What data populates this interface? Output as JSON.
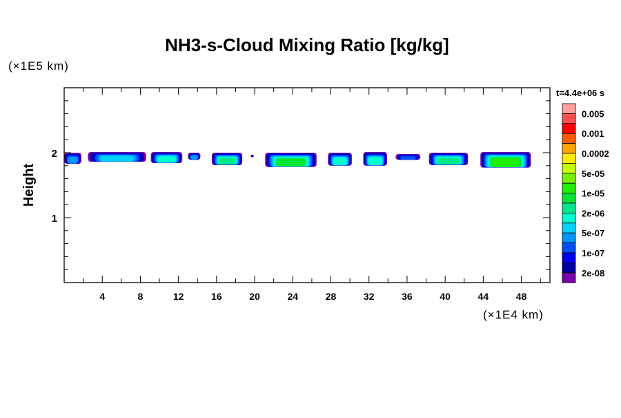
{
  "chart_data": {
    "type": "heatmap",
    "title": "NH3-s-Cloud Mixing Ratio [kg/kg]",
    "ylabel": "Height",
    "yunit": "(×1E5 km)",
    "xunit": "(×1E4 km)",
    "time_label": "t=4.4e+06 s",
    "xlim": [
      0,
      51
    ],
    "ylim": [
      0,
      3
    ],
    "xticks": [
      4,
      8,
      12,
      16,
      20,
      24,
      28,
      32,
      36,
      40,
      44,
      48
    ],
    "yticks": [
      1,
      2
    ],
    "colorbar": {
      "colors": [
        "#ff9f9f",
        "#ff4f4f",
        "#ff0000",
        "#ff5a00",
        "#ffa500",
        "#ffeb00",
        "#c8ff00",
        "#78f000",
        "#1fef00",
        "#00e633",
        "#00e68c",
        "#00ffd0",
        "#00d2ff",
        "#0096ff",
        "#0050ff",
        "#0000f0",
        "#0000a0",
        "#7800a8"
      ],
      "labels": [
        "0.005",
        "0.001",
        "0.0002",
        "5e-05",
        "1e-05",
        "2e-06",
        "5e-07",
        "1e-07",
        "2e-08"
      ]
    },
    "clouds": [
      {
        "x": [
          0.0,
          1.8
        ],
        "y": [
          1.83,
          2.0
        ],
        "max_level": 13
      },
      {
        "x": [
          2.5,
          8.6
        ],
        "y": [
          1.86,
          2.01
        ],
        "max_level": 12
      },
      {
        "x": [
          9.1,
          12.4
        ],
        "y": [
          1.84,
          2.01
        ],
        "max_level": 11
      },
      {
        "x": [
          13.0,
          14.3
        ],
        "y": [
          1.89,
          2.0
        ],
        "max_level": 13
      },
      {
        "x": [
          15.5,
          18.7
        ],
        "y": [
          1.81,
          2.0
        ],
        "max_level": 10
      },
      {
        "x": [
          19.6,
          19.9
        ],
        "y": [
          1.93,
          1.97
        ],
        "max_level": 15
      },
      {
        "x": [
          21.1,
          26.5
        ],
        "y": [
          1.78,
          2.0
        ],
        "max_level": 9
      },
      {
        "x": [
          27.7,
          30.2
        ],
        "y": [
          1.8,
          2.0
        ],
        "max_level": 11
      },
      {
        "x": [
          31.4,
          33.9
        ],
        "y": [
          1.8,
          2.01
        ],
        "max_level": 11
      },
      {
        "x": [
          34.8,
          37.4
        ],
        "y": [
          1.89,
          1.98
        ],
        "max_level": 14
      },
      {
        "x": [
          38.3,
          42.4
        ],
        "y": [
          1.81,
          2.0
        ],
        "max_level": 10
      },
      {
        "x": [
          43.7,
          49.0
        ],
        "y": [
          1.77,
          2.01
        ],
        "max_level": 8
      }
    ]
  }
}
